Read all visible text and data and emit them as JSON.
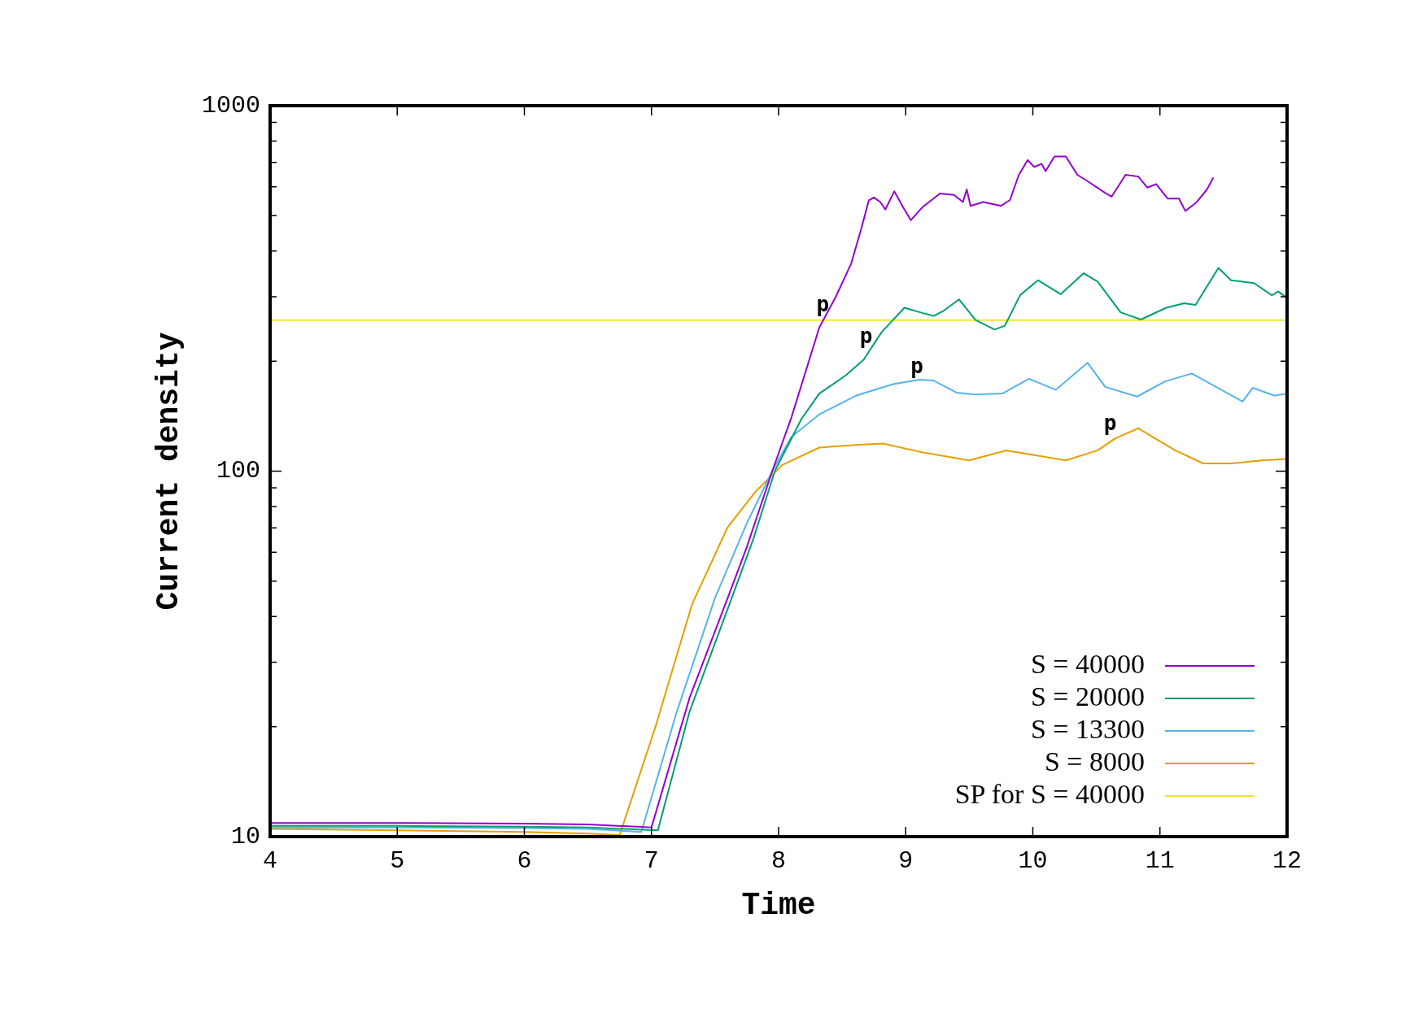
{
  "chart_data": {
    "type": "line",
    "xlabel": "Time",
    "ylabel": "Current density",
    "log": "y",
    "grid": false,
    "legend": "bottom right",
    "marker": "none",
    "line_style": "solid",
    "xlim": [
      4,
      12
    ],
    "xticks": [
      4,
      5,
      6,
      7,
      8,
      9,
      10,
      11,
      12
    ],
    "ylim": [
      10,
      1000
    ],
    "yticks": [
      10,
      {
        "value": 20,
        "label": null
      },
      {
        "value": 30,
        "label": null
      },
      {
        "value": 40,
        "label": null
      },
      {
        "value": 50,
        "label": null
      },
      {
        "value": 60,
        "label": null
      },
      {
        "value": 70,
        "label": null
      },
      {
        "value": 80,
        "label": null
      },
      {
        "value": 90,
        "label": null
      },
      100,
      {
        "value": 200,
        "label": null
      },
      {
        "value": 300,
        "label": null
      },
      {
        "value": 400,
        "label": null
      },
      {
        "value": 500,
        "label": null
      },
      {
        "value": 600,
        "label": null
      },
      {
        "value": 700,
        "label": null
      },
      {
        "value": 800,
        "label": null
      },
      {
        "value": 900,
        "label": null
      },
      1000
    ],
    "series": [
      {
        "name": "S = 40000",
        "color": "#9400d3",
        "x": [
          4,
          5,
          6,
          6.5,
          7.0,
          7.3,
          7.6,
          7.75,
          7.95,
          8.1,
          8.32,
          8.45,
          8.57,
          8.65,
          8.71,
          8.75,
          8.8,
          8.84,
          8.91,
          8.98,
          9.04,
          9.13,
          9.27,
          9.38,
          9.45,
          9.48,
          9.51,
          9.61,
          9.75,
          9.82,
          9.89,
          9.96,
          10.01,
          10.07,
          10.1,
          10.17,
          10.26,
          10.35,
          10.42,
          10.57,
          10.62,
          10.73,
          10.83,
          10.9,
          10.97,
          11.06,
          11.15,
          11.2,
          11.29,
          11.37,
          11.42
        ],
        "values": [
          10.9,
          10.9,
          10.85,
          10.8,
          10.6,
          24,
          45,
          62,
          100,
          140,
          247,
          300,
          369,
          460,
          551,
          561,
          545,
          520,
          583,
          527,
          486,
          527,
          575,
          570,
          545,
          590,
          532,
          545,
          532,
          552,
          647,
          710,
          680,
          693,
          662,
          726,
          726,
          647,
          625,
          577,
          564,
          647,
          640,
          597,
          610,
          557,
          557,
          515,
          545,
          590,
          636
        ]
      },
      {
        "name": "S = 20000",
        "color": "#009e73",
        "x": [
          4,
          5,
          6,
          6.5,
          7.05,
          7.3,
          7.6,
          7.8,
          7.97,
          8.18,
          8.32,
          8.53,
          8.67,
          8.81,
          8.99,
          9.13,
          9.22,
          9.3,
          9.42,
          9.55,
          9.7,
          9.78,
          9.9,
          10.04,
          10.22,
          10.4,
          10.51,
          10.69,
          10.85,
          11.05,
          11.19,
          11.28,
          11.46,
          11.56,
          11.74,
          11.88,
          11.93,
          12
        ],
        "values": [
          10.7,
          10.7,
          10.65,
          10.6,
          10.4,
          22,
          42,
          65,
          100,
          139,
          163,
          183,
          202,
          240,
          280,
          271,
          266,
          275,
          295,
          259,
          244,
          250,
          303,
          333,
          305,
          348,
          330,
          272,
          260,
          280,
          288,
          285,
          360,
          333,
          327,
          303,
          310,
          298
        ]
      },
      {
        "name": "S = 13300",
        "color": "#56b4e9",
        "x": [
          4,
          5,
          6,
          6.5,
          6.92,
          7.2,
          7.5,
          7.75,
          7.95,
          8.1,
          8.32,
          8.61,
          8.9,
          9.11,
          9.22,
          9.4,
          9.55,
          9.76,
          9.97,
          10.18,
          10.43,
          10.57,
          10.82,
          11.04,
          11.25,
          11.65,
          11.73,
          11.9,
          12
        ],
        "values": [
          10.6,
          10.6,
          10.55,
          10.5,
          10.3,
          22,
          45,
          72,
          100,
          124,
          143,
          161,
          173,
          178,
          177,
          164,
          162,
          163,
          179,
          167,
          198,
          170,
          160,
          176,
          185,
          155,
          169,
          161,
          163
        ]
      },
      {
        "name": "S = 8000",
        "color": "#e69f00",
        "x": [
          4,
          5,
          6,
          6.5,
          6.75,
          7.03,
          7.32,
          7.6,
          7.82,
          8.03,
          8.32,
          8.61,
          8.82,
          9.11,
          9.5,
          9.79,
          10.26,
          10.51,
          10.65,
          10.83,
          11.12,
          11.34,
          11.56,
          11.8,
          12
        ],
        "values": [
          10.5,
          10.4,
          10.3,
          10.2,
          10.1,
          19.9,
          43.3,
          70.3,
          88,
          104,
          116,
          118,
          119,
          113,
          107,
          114,
          107,
          114,
          123,
          131,
          114,
          105,
          105,
          107,
          108
        ]
      },
      {
        "name": "SP for S = 40000",
        "color": "#f0e442",
        "x": [
          4,
          12
        ],
        "values": [
          259,
          259
        ]
      }
    ],
    "annotations": [
      {
        "text": "p",
        "x": 8.36,
        "y": 262
      },
      {
        "text": "p",
        "x": 8.7,
        "y": 215
      },
      {
        "text": "p",
        "x": 9.1,
        "y": 178
      },
      {
        "text": "p",
        "x": 10.62,
        "y": 124
      }
    ]
  }
}
